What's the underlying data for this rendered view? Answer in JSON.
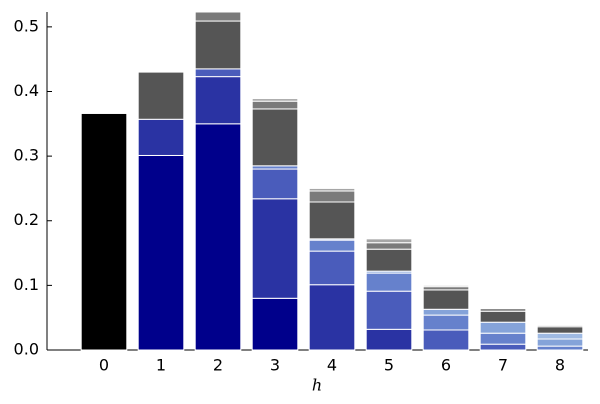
{
  "chart_data": {
    "type": "stacked_bar",
    "x_label": "h",
    "categories": [
      "0",
      "1",
      "2",
      "3",
      "4",
      "5",
      "6",
      "7",
      "8"
    ],
    "series": [
      {
        "color": "#000000",
        "values": [
          0.366,
          0,
          0,
          0,
          0,
          0,
          0,
          0,
          0
        ]
      },
      {
        "color": "#00008b",
        "values": [
          0,
          0.301,
          0.35,
          0.08,
          0,
          0,
          0,
          0,
          0
        ]
      },
      {
        "color": "#2a33a3",
        "values": [
          0,
          0.056,
          0.073,
          0.154,
          0.101,
          0.032,
          0,
          0,
          0
        ]
      },
      {
        "color": "#4a5cbb",
        "values": [
          0,
          0,
          0.012,
          0.046,
          0.052,
          0.059,
          0.031,
          0.009,
          0
        ]
      },
      {
        "color": "#6681cc",
        "values": [
          0,
          0,
          0,
          0.005,
          0.017,
          0.028,
          0.023,
          0.017,
          0.006
        ]
      },
      {
        "color": "#85a3d9",
        "values": [
          0,
          0,
          0,
          0,
          0.002,
          0.003,
          0.009,
          0.017,
          0.011
        ]
      },
      {
        "color": "#9fbae3",
        "values": [
          0,
          0,
          0,
          0,
          0,
          0,
          0,
          0,
          0.009
        ]
      },
      {
        "color": "#555555",
        "values": [
          0,
          0.073,
          0.074,
          0.088,
          0.057,
          0.034,
          0.03,
          0.017,
          0.01
        ]
      },
      {
        "color": "#7a7a7a",
        "values": [
          0,
          0,
          0.014,
          0.012,
          0.017,
          0.01,
          0.005,
          0.004,
          0.002
        ]
      },
      {
        "color": "#a6a6a6",
        "values": [
          0,
          0,
          0,
          0.004,
          0.004,
          0.006,
          0.002,
          0,
          0
        ]
      }
    ],
    "ylim": [
      0,
      0.523
    ],
    "yticks": [
      {
        "value": 0,
        "label": "0.0"
      },
      0.1,
      0.2,
      0.3,
      0.4,
      0.5
    ],
    "grid": false
  }
}
